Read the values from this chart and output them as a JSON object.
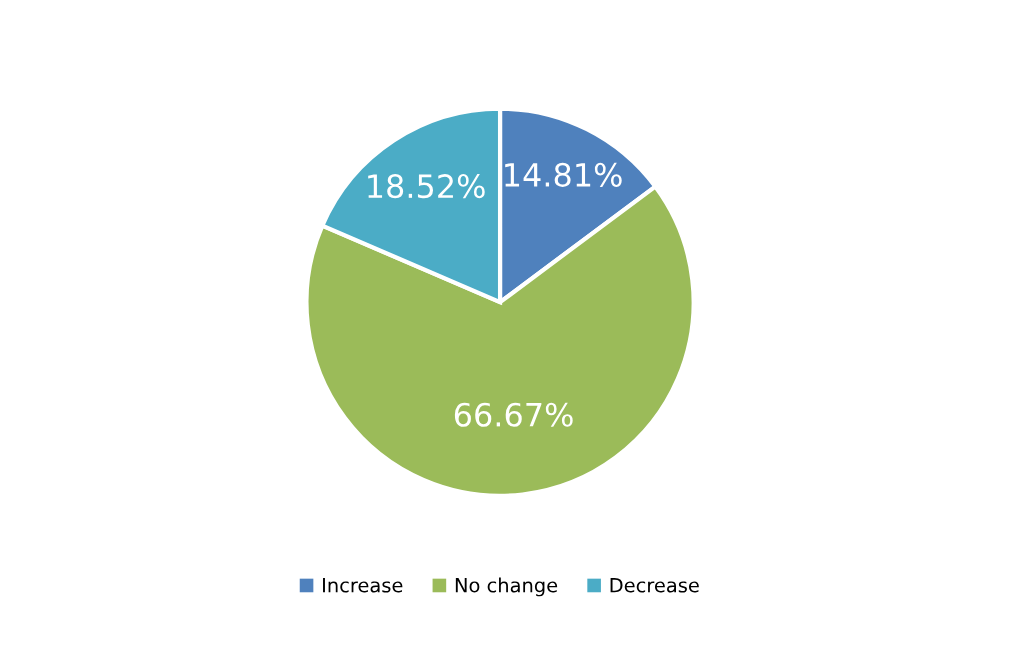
{
  "chart_data": {
    "type": "pie",
    "categories": [
      "Increase",
      "No change",
      "Decrease"
    ],
    "values": [
      14.81,
      66.67,
      18.52
    ],
    "colors": [
      "#4f81bd",
      "#9bbb59",
      "#4bacc6"
    ],
    "value_labels": [
      "14.81%",
      "66.67%",
      "18.52%"
    ],
    "legend": "bottom"
  }
}
